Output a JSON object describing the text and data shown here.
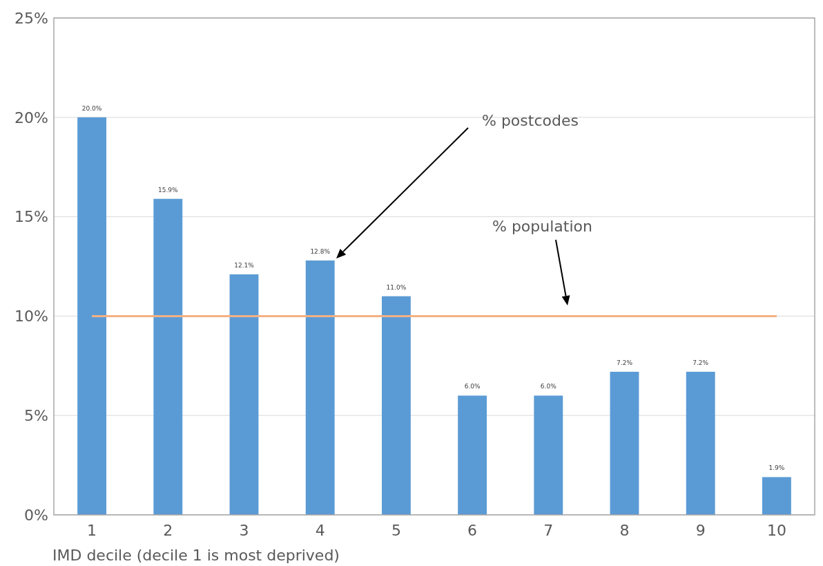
{
  "chart_data": {
    "type": "bar",
    "xlabel": "IMD decile (decile 1 is most deprived)",
    "categories": [
      "1",
      "2",
      "3",
      "4",
      "5",
      "6",
      "7",
      "8",
      "9",
      "10"
    ],
    "series": [
      {
        "color": "#5b9bd5",
        "values": [
          20.0,
          15.9,
          12.1,
          12.8,
          11.0,
          6.0,
          6.0,
          7.2,
          7.2,
          1.9
        ],
        "value_labels": [
          "20.0%",
          "15.9%",
          "12.1%",
          "12.8%",
          "11.0%",
          "6.0%",
          "6.0%",
          "7.2%",
          "7.2%",
          "1.9%"
        ]
      },
      {
        "type": "line",
        "color": "#f4b183",
        "values": [
          10,
          10,
          10,
          10,
          10,
          10,
          10,
          10,
          10,
          10
        ]
      }
    ],
    "annotations": [
      "% postcodes",
      "% population"
    ],
    "ylim": [
      0,
      25
    ],
    "yticks": [
      {
        "value": 0,
        "label": "0%"
      },
      {
        "value": 5,
        "label": "5%"
      },
      {
        "value": 10,
        "label": "10%"
      },
      {
        "value": 15,
        "label": "15%"
      },
      {
        "value": 20,
        "label": "20%"
      },
      {
        "value": 25,
        "label": "25%"
      }
    ],
    "grid": "y",
    "marker": "none"
  }
}
